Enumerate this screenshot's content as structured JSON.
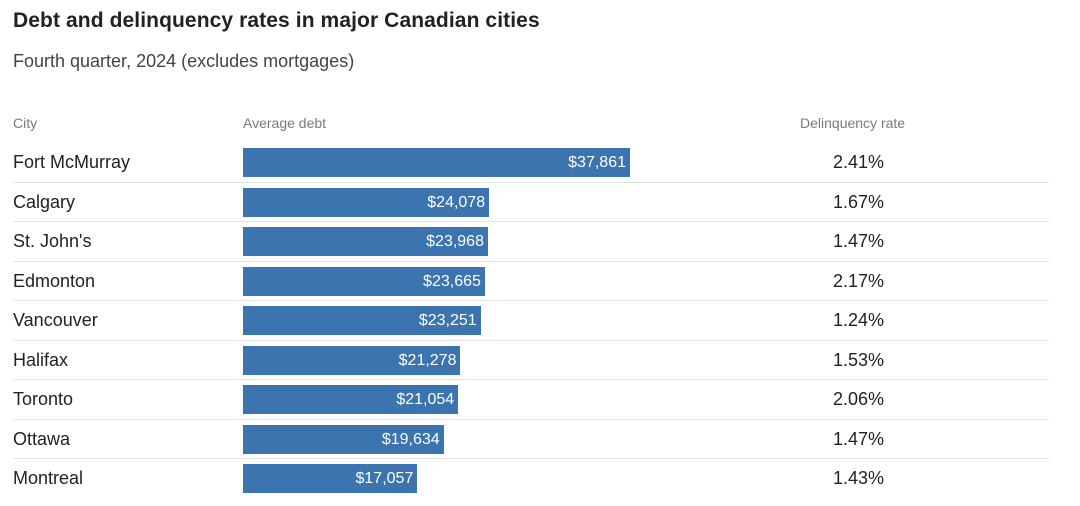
{
  "title": "Debt and delinquency rates in major Canadian cities",
  "subtitle": "Fourth quarter, 2024 (excludes mortgages)",
  "colors": {
    "bar": "#3b74ae",
    "bar_label": "#ffffff",
    "header": "#7a7a7a",
    "divider": "#e3e3e3"
  },
  "chart_data": {
    "type": "bar",
    "orientation": "horizontal",
    "title": "Debt and delinquency rates in major Canadian cities",
    "subtitle": "Fourth quarter, 2024 (excludes mortgages)",
    "columns": {
      "city": "City",
      "debt": "Average debt",
      "rate": "Delinquency rate"
    },
    "categories": [
      "Fort McMurray",
      "Calgary",
      "St. John's",
      "Edmonton",
      "Vancouver",
      "Halifax",
      "Toronto",
      "Ottawa",
      "Montreal"
    ],
    "values": [
      37861,
      24078,
      23968,
      23665,
      23251,
      21278,
      21054,
      19634,
      17057
    ],
    "value_labels": [
      "$37,861",
      "$24,078",
      "$23,968",
      "$23,665",
      "$23,251",
      "$21,278",
      "$21,054",
      "$19,634",
      "$17,057"
    ],
    "delinquency_rates": [
      "2.41%",
      "1.67%",
      "1.47%",
      "2.17%",
      "1.24%",
      "1.53%",
      "2.06%",
      "1.47%",
      "1.43%"
    ],
    "xlim": [
      0,
      37861
    ],
    "grid": false,
    "legend": "none"
  }
}
